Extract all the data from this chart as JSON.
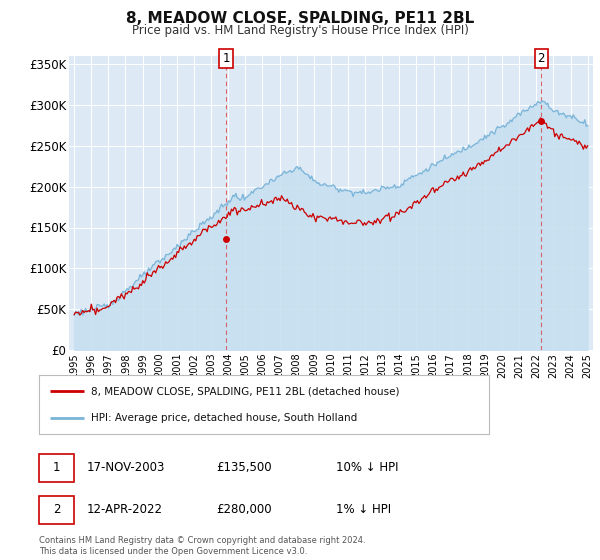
{
  "title": "8, MEADOW CLOSE, SPALDING, PE11 2BL",
  "subtitle": "Price paid vs. HM Land Registry's House Price Index (HPI)",
  "legend_line1": "8, MEADOW CLOSE, SPALDING, PE11 2BL (detached house)",
  "legend_line2": "HPI: Average price, detached house, South Holland",
  "annotation1_date": "17-NOV-2003",
  "annotation1_price": "£135,500",
  "annotation1_hpi": "10% ↓ HPI",
  "annotation2_date": "12-APR-2022",
  "annotation2_price": "£280,000",
  "annotation2_hpi": "1% ↓ HPI",
  "footer": "Contains HM Land Registry data © Crown copyright and database right 2024.\nThis data is licensed under the Open Government Licence v3.0.",
  "hpi_color": "#7ab4d8",
  "hpi_fill_color": "#c5dff0",
  "price_color": "#cc0000",
  "ylim": [
    0,
    360000
  ],
  "yticks": [
    0,
    50000,
    100000,
    150000,
    200000,
    250000,
    300000,
    350000
  ],
  "background_color": "#ffffff",
  "plot_bg_color": "#ddeaf5",
  "grid_color": "#ffffff",
  "sale1_x": 2003.88,
  "sale1_y": 135500,
  "sale2_x": 2022.29,
  "sale2_y": 280000,
  "xmin": 1994.7,
  "xmax": 2025.3
}
